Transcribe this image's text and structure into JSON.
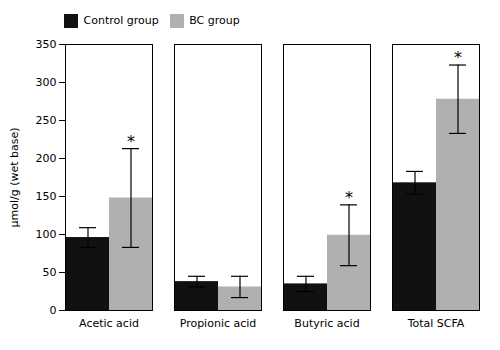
{
  "chart_data": {
    "type": "bar",
    "ylabel": "μmol/g (wet base)",
    "categories": [
      "Acetic acid",
      "Propionic acid",
      "Butyric acid",
      "Total SCFA"
    ],
    "series": [
      {
        "name": "Control group",
        "color": "#111111",
        "values": [
          96,
          38,
          35,
          168
        ],
        "errors": [
          13,
          7,
          10,
          15
        ]
      },
      {
        "name": "BC group",
        "color": "#b0b0b0",
        "values": [
          148,
          31,
          99,
          278
        ],
        "errors": [
          65,
          14,
          40,
          45
        ]
      }
    ],
    "ylim": [
      0,
      350
    ],
    "yticks": [
      0,
      50,
      100,
      150,
      200,
      250,
      300,
      350
    ],
    "grid": false,
    "legend": "upper left",
    "annotations": [
      {
        "category": "Acetic acid",
        "series": "BC group",
        "text": "*"
      },
      {
        "category": "Butyric acid",
        "series": "BC group",
        "text": "*"
      },
      {
        "category": "Total SCFA",
        "series": "BC group",
        "text": "*"
      }
    ]
  }
}
